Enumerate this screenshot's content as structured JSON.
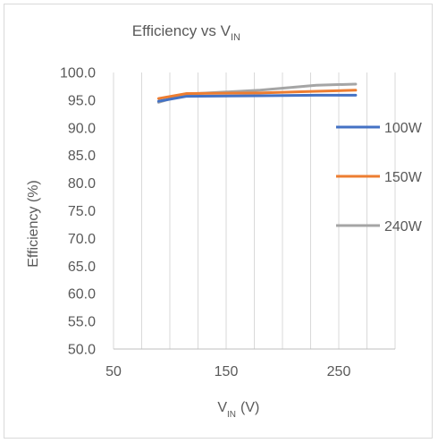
{
  "chart_data": {
    "type": "line",
    "title": "Efficiency vs V",
    "title_subscript": "IN",
    "xlabel": "V",
    "xlabel_subscript": "IN",
    "xlabel_unit": "(V)",
    "ylabel": "Efficiency (%)",
    "xlim": [
      50,
      300
    ],
    "ylim": [
      50,
      100
    ],
    "x_ticks": [
      50,
      150,
      250
    ],
    "x_tick_labels": [
      "50",
      "150",
      "250"
    ],
    "y_ticks": [
      50,
      55,
      60,
      65,
      70,
      75,
      80,
      85,
      90,
      95,
      100
    ],
    "y_tick_labels": [
      "50.0",
      "55.0",
      "60.0",
      "65.0",
      "70.0",
      "75.0",
      "80.0",
      "85.0",
      "90.0",
      "95.0",
      "100.0"
    ],
    "grid": "vertical",
    "legend_position": "right",
    "series": [
      {
        "name": "100W",
        "color": "#4472c4",
        "x": [
          90,
          115,
          180,
          230,
          265
        ],
        "y": [
          94.8,
          95.7,
          95.8,
          95.9,
          95.9
        ]
      },
      {
        "name": "150W",
        "color": "#ed7d31",
        "x": [
          90,
          115,
          180,
          230,
          265
        ],
        "y": [
          95.3,
          96.2,
          96.3,
          96.6,
          96.8
        ]
      },
      {
        "name": "240W",
        "color": "#a5a5a5",
        "x": [
          90,
          115,
          180,
          230,
          265
        ],
        "y": [
          94.6,
          96.1,
          96.8,
          97.7,
          97.9
        ]
      }
    ]
  }
}
